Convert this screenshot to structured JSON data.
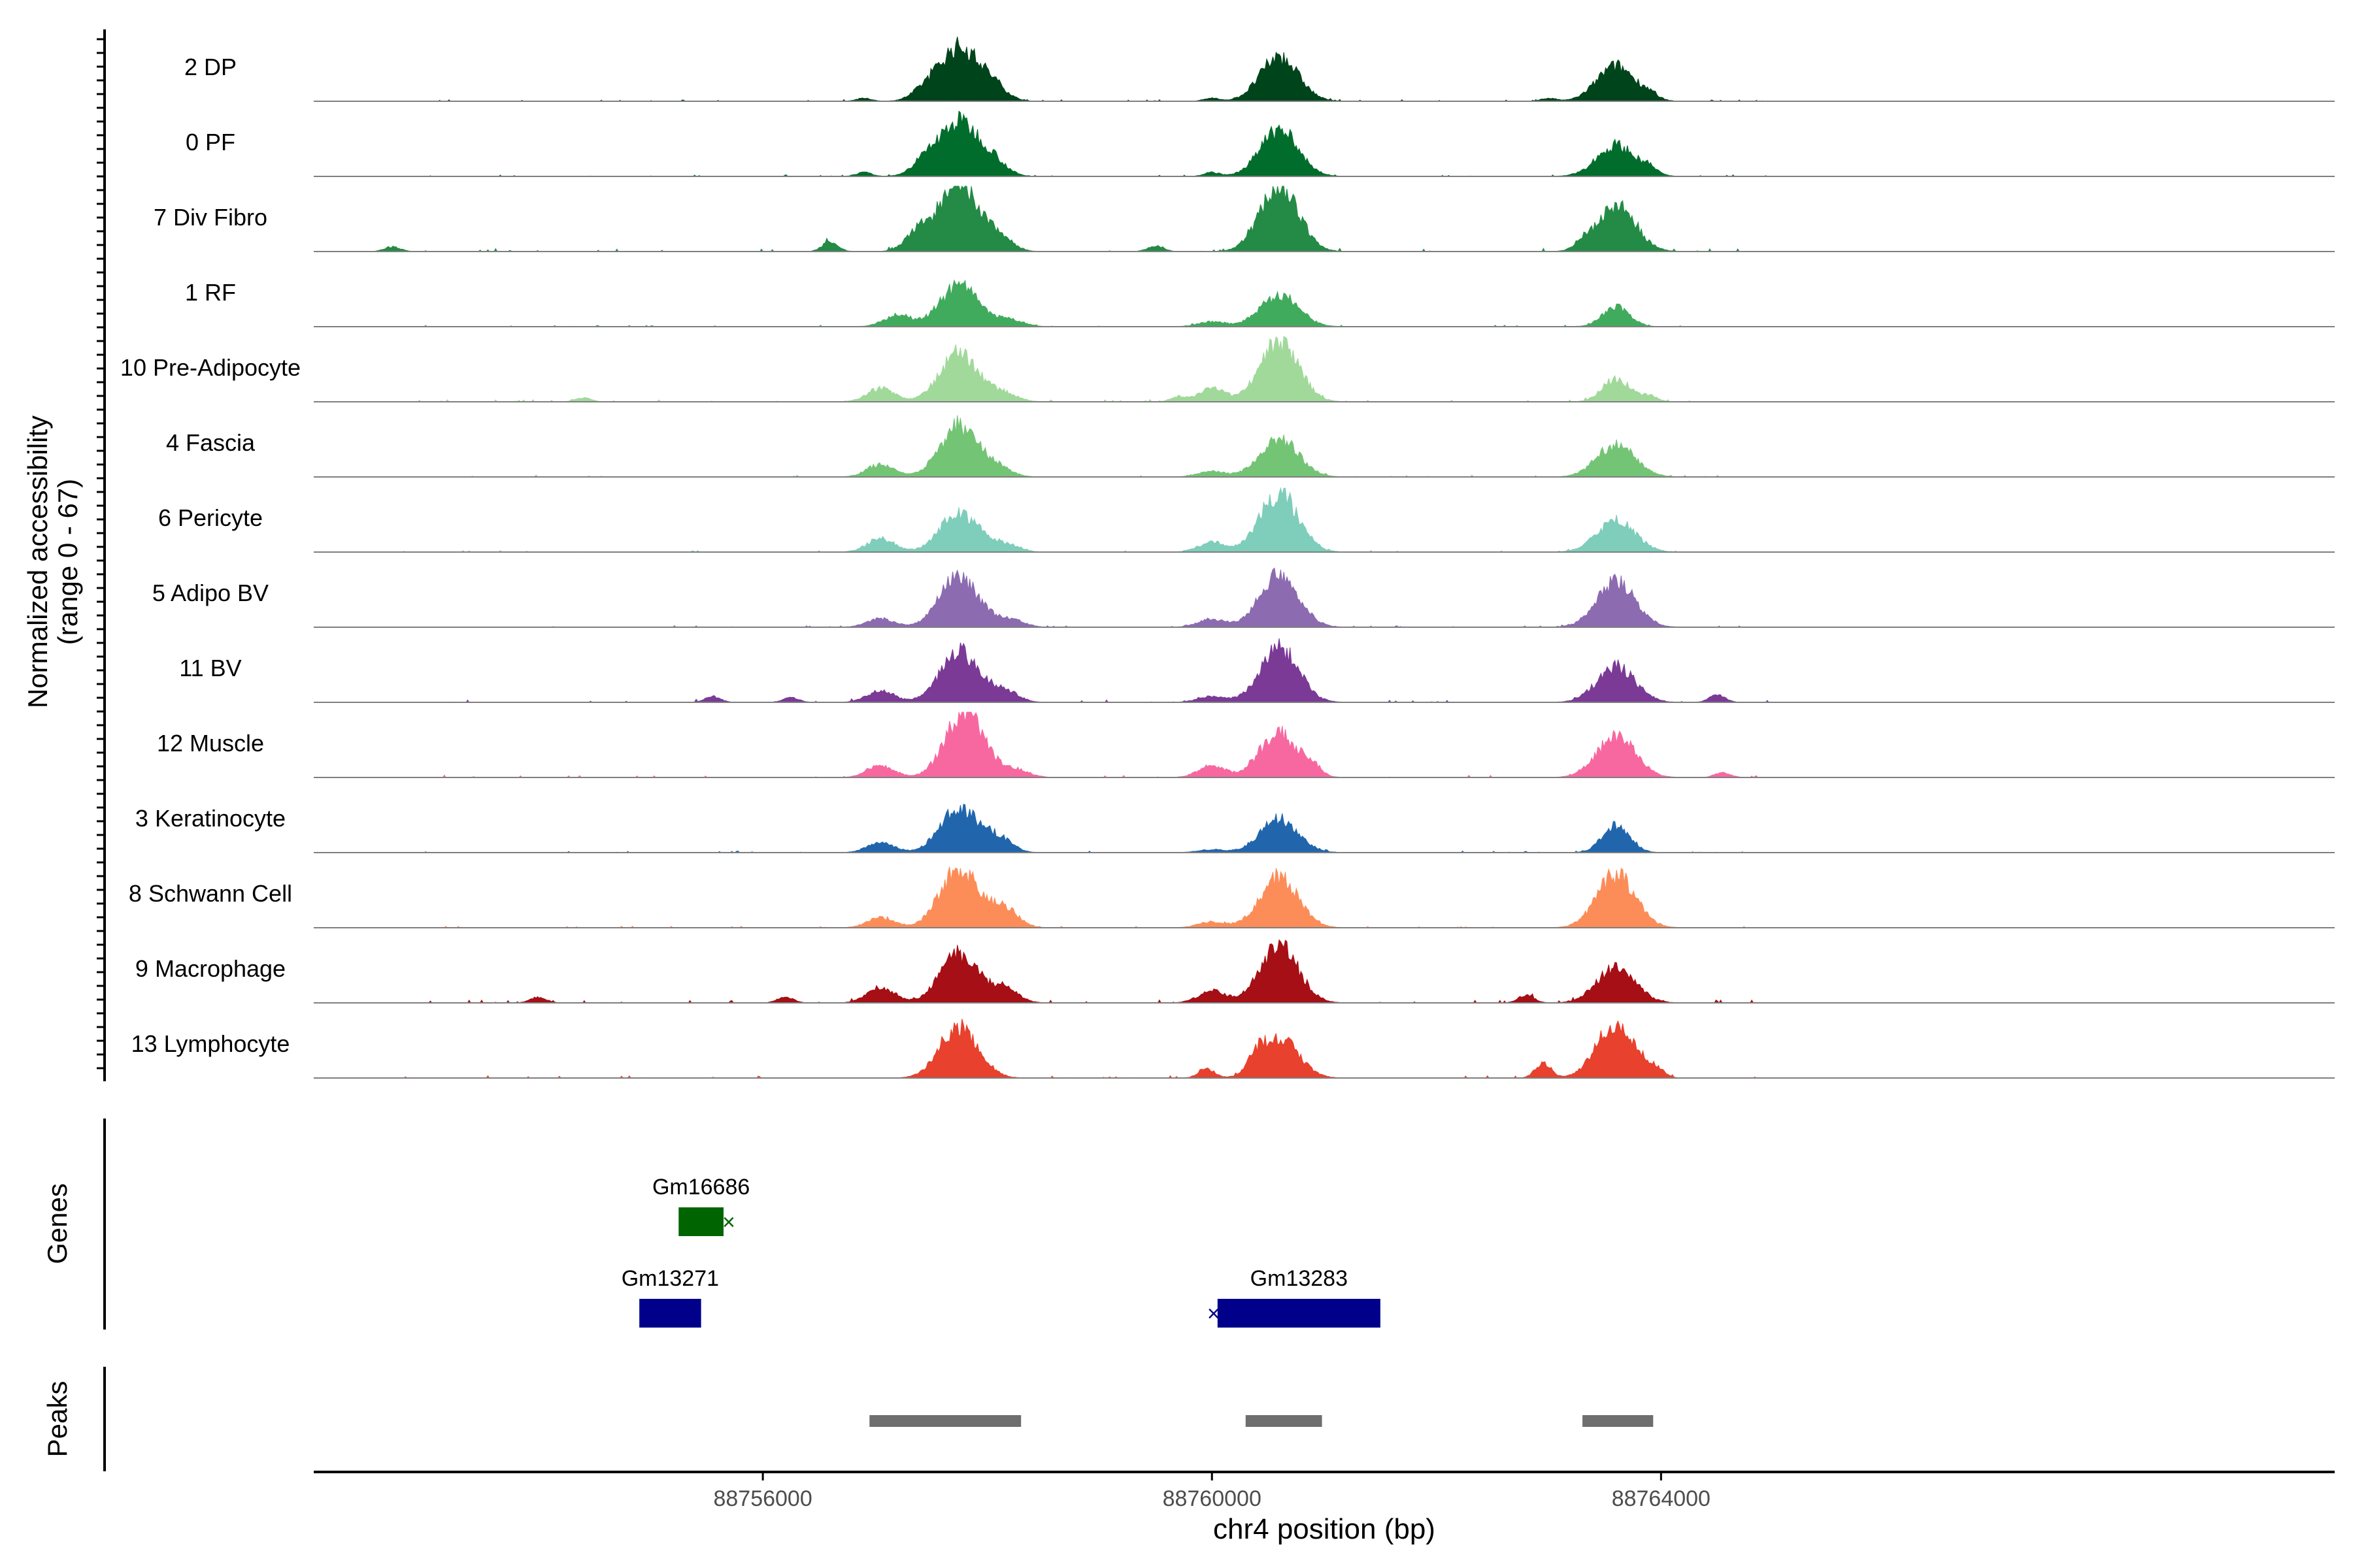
{
  "chart_data": {
    "type": "area",
    "title": "",
    "chromosome": "chr4",
    "xlabel": "chr4 position (bp)",
    "xlim": [
      88752000,
      88770000
    ],
    "xticks": [
      88756000,
      88760000,
      88764000
    ],
    "xtick_labels": [
      "88756000",
      "88760000",
      "88764000"
    ],
    "ylabel_line1": "Normalized accessibility",
    "ylabel_line2": "(range 0 - 67)",
    "ylim": [
      0,
      67
    ],
    "axis_color": "#000000",
    "baseline_color": "#7f7f7f",
    "tracks": [
      {
        "name": "2 DP",
        "color": "#00441b",
        "peaks": [
          [
            88757450,
            10
          ],
          [
            88757750,
            55
          ],
          [
            88758050,
            14
          ],
          [
            88760600,
            45
          ],
          [
            88763600,
            36
          ]
        ],
        "noise": 2,
        "extra": [
          [
            88756900,
            3
          ],
          [
            88760000,
            3
          ],
          [
            88763000,
            3
          ],
          [
            88763900,
            5
          ]
        ]
      },
      {
        "name": "0 PF",
        "color": "#006d2c",
        "peaks": [
          [
            88757450,
            14
          ],
          [
            88757750,
            55
          ],
          [
            88758050,
            14
          ],
          [
            88760600,
            47
          ],
          [
            88763600,
            32
          ]
        ],
        "noise": 2,
        "extra": [
          [
            88756900,
            4
          ],
          [
            88760000,
            4
          ],
          [
            88763900,
            6
          ]
        ]
      },
      {
        "name": "7 Div Fibro",
        "color": "#238b45",
        "peaks": [
          [
            88757400,
            20
          ],
          [
            88757750,
            67
          ],
          [
            88758100,
            14
          ],
          [
            88760600,
            67
          ],
          [
            88763600,
            47
          ]
        ],
        "noise": 4,
        "extra": [
          [
            88752700,
            5
          ],
          [
            88756600,
            10
          ],
          [
            88759500,
            6
          ],
          [
            88763300,
            6
          ]
        ]
      },
      {
        "name": "1 RF",
        "color": "#41ab5d",
        "peaks": [
          [
            88757200,
            12
          ],
          [
            88757750,
            42
          ],
          [
            88758200,
            7
          ],
          [
            88760000,
            5
          ],
          [
            88760600,
            33
          ],
          [
            88763600,
            20
          ]
        ],
        "noise": 2,
        "extra": []
      },
      {
        "name": "10 Pre-Adipocyte",
        "color": "#a1d99b",
        "peaks": [
          [
            88757050,
            14
          ],
          [
            88757750,
            50
          ],
          [
            88758150,
            8
          ],
          [
            88760000,
            14
          ],
          [
            88760600,
            62
          ],
          [
            88763600,
            24
          ]
        ],
        "noise": 3,
        "extra": [
          [
            88754400,
            4
          ],
          [
            88759700,
            5
          ],
          [
            88763900,
            6
          ]
        ]
      },
      {
        "name": "4 Fascia",
        "color": "#74c476",
        "peaks": [
          [
            88757050,
            13
          ],
          [
            88757750,
            52
          ],
          [
            88758100,
            8
          ],
          [
            88760000,
            6
          ],
          [
            88760600,
            40
          ],
          [
            88763600,
            33
          ]
        ],
        "noise": 2,
        "extra": []
      },
      {
        "name": "6 Pericyte",
        "color": "#7fcdbb",
        "peaks": [
          [
            88757050,
            14
          ],
          [
            88757750,
            40
          ],
          [
            88758150,
            8
          ],
          [
            88760000,
            10
          ],
          [
            88760600,
            60
          ],
          [
            88763600,
            32
          ]
        ],
        "noise": 2,
        "extra": []
      },
      {
        "name": "5 Adipo BV",
        "color": "#8c6bb1",
        "peaks": [
          [
            88757050,
            9
          ],
          [
            88757750,
            52
          ],
          [
            88758200,
            8
          ],
          [
            88760000,
            8
          ],
          [
            88760600,
            55
          ],
          [
            88763600,
            46
          ]
        ],
        "noise": 2,
        "extra": []
      },
      {
        "name": "11 BV",
        "color": "#7a3a96",
        "peaks": [
          [
            88757050,
            12
          ],
          [
            88757750,
            52
          ],
          [
            88758150,
            12
          ],
          [
            88760000,
            6
          ],
          [
            88760600,
            55
          ],
          [
            88763600,
            36
          ]
        ],
        "noise": 3,
        "extra": [
          [
            88755550,
            6
          ],
          [
            88756250,
            5
          ],
          [
            88764500,
            8
          ]
        ]
      },
      {
        "name": "12 Muscle",
        "color": "#f768a1",
        "peaks": [
          [
            88757050,
            12
          ],
          [
            88757800,
            67
          ],
          [
            88758250,
            8
          ],
          [
            88760000,
            12
          ],
          [
            88760600,
            45
          ],
          [
            88763600,
            42
          ]
        ],
        "noise": 3,
        "extra": [
          [
            88760900,
            8
          ],
          [
            88764550,
            5
          ]
        ]
      },
      {
        "name": "3 Keratinocyte",
        "color": "#2166ac",
        "peaks": [
          [
            88757050,
            10
          ],
          [
            88757750,
            44
          ],
          [
            88758100,
            14
          ],
          [
            88760000,
            3
          ],
          [
            88760600,
            34
          ],
          [
            88763600,
            28
          ]
        ],
        "noise": 2,
        "extra": []
      },
      {
        "name": "8 Schwann Cell",
        "color": "#fc8d59",
        "peaks": [
          [
            88757050,
            10
          ],
          [
            88757750,
            60
          ],
          [
            88758150,
            20
          ],
          [
            88760000,
            6
          ],
          [
            88760600,
            52
          ],
          [
            88763600,
            54
          ]
        ],
        "noise": 2,
        "extra": []
      },
      {
        "name": "9 Macrophage",
        "color": "#a50f15",
        "peaks": [
          [
            88757050,
            16
          ],
          [
            88757750,
            50
          ],
          [
            88758150,
            15
          ],
          [
            88760000,
            12
          ],
          [
            88760600,
            58
          ],
          [
            88763600,
            36
          ]
        ],
        "noise": 4,
        "extra": [
          [
            88754000,
            6
          ],
          [
            88756200,
            6
          ],
          [
            88762800,
            8
          ]
        ]
      },
      {
        "name": "13 Lymphocyte",
        "color": "#e8412d",
        "peaks": [
          [
            88757750,
            52
          ],
          [
            88760600,
            40
          ],
          [
            88763600,
            56
          ]
        ],
        "noise": 3,
        "extra": [
          [
            88759950,
            10
          ],
          [
            88760400,
            12
          ],
          [
            88762950,
            15
          ],
          [
            88763950,
            8
          ]
        ]
      }
    ],
    "genes": {
      "label": "Genes",
      "items": [
        {
          "name": "Gm16686",
          "start": 88755250,
          "end": 88755650,
          "strand": "-",
          "row": 0,
          "color": "#006400"
        },
        {
          "name": "Gm13271",
          "start": 88754900,
          "end": 88755450,
          "strand": "+",
          "row": 1,
          "color": "#00008b"
        },
        {
          "name": "Gm13283",
          "start": 88760050,
          "end": 88761500,
          "strand": "-",
          "row": 1,
          "color": "#00008b"
        }
      ]
    },
    "peaks": {
      "label": "Peaks",
      "color": "#6e6e6e",
      "regions": [
        [
          88756950,
          88758300
        ],
        [
          88760300,
          88760980
        ],
        [
          88763300,
          88763930
        ]
      ]
    }
  }
}
